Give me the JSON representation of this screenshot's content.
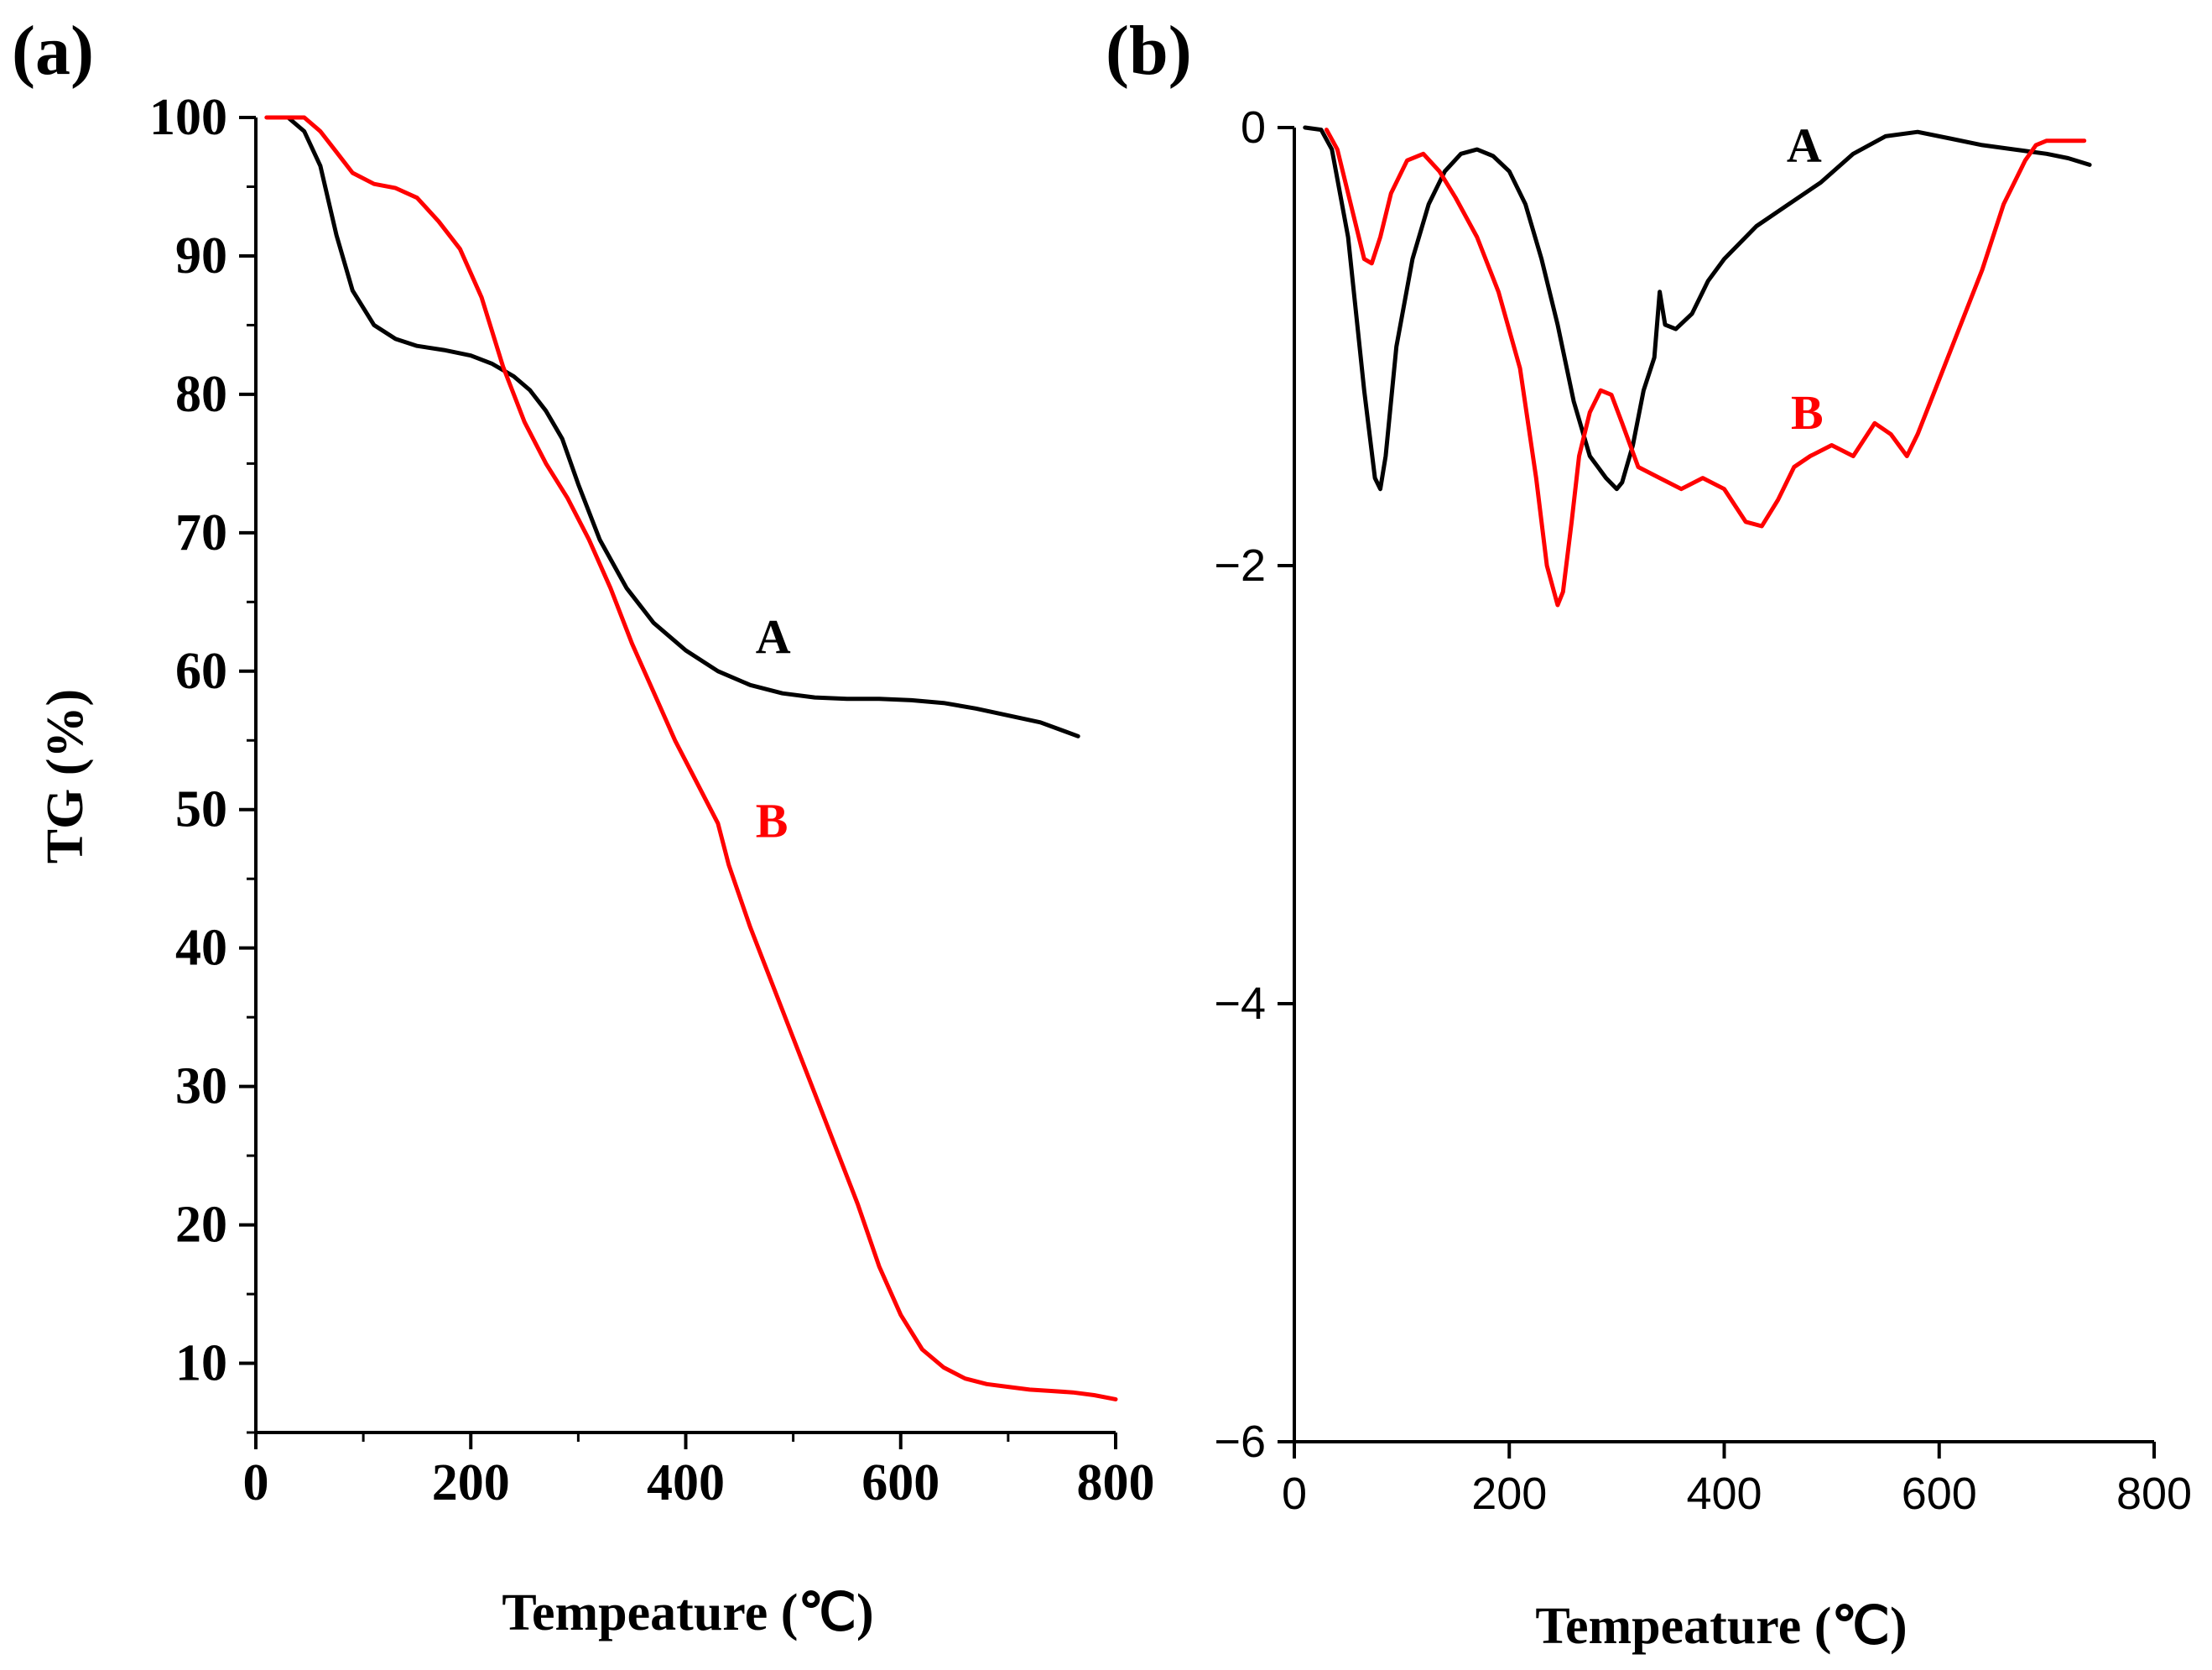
{
  "chart_data": [
    {
      "panel": "(a)",
      "type": "line",
      "xlabel": "Tempeature (℃)",
      "ylabel": "TG (%)",
      "xlim": [
        0,
        800
      ],
      "ylim": [
        5,
        100
      ],
      "xticks": [
        0,
        200,
        400,
        600,
        800
      ],
      "yticks": [
        10,
        20,
        30,
        40,
        50,
        60,
        70,
        80,
        90,
        100
      ],
      "grid": false,
      "series": [
        {
          "name": "A",
          "color": "#000000",
          "x": [
            30,
            45,
            60,
            75,
            90,
            110,
            130,
            150,
            175,
            200,
            220,
            240,
            255,
            270,
            285,
            300,
            320,
            345,
            370,
            400,
            430,
            460,
            490,
            520,
            550,
            580,
            610,
            640,
            670,
            700,
            730,
            765
          ],
          "y": [
            100,
            99,
            96.5,
            91.5,
            87.5,
            85,
            84,
            83.5,
            83.2,
            82.8,
            82.2,
            81.3,
            80.3,
            78.8,
            76.8,
            73.5,
            69.5,
            66,
            63.5,
            61.5,
            60,
            59,
            58.4,
            58.1,
            58,
            58,
            57.9,
            57.7,
            57.3,
            56.8,
            56.3,
            55.3
          ]
        },
        {
          "name": "B",
          "color": "#ff0000",
          "x": [
            10,
            30,
            45,
            60,
            75,
            90,
            110,
            130,
            150,
            170,
            190,
            210,
            230,
            250,
            270,
            290,
            310,
            330,
            350,
            370,
            390,
            410,
            430,
            440,
            460,
            480,
            500,
            520,
            540,
            560,
            580,
            600,
            620,
            640,
            660,
            680,
            700,
            720,
            740,
            760,
            780,
            800
          ],
          "y": [
            100,
            100,
            100,
            99,
            97.5,
            96,
            95.2,
            94.9,
            94.2,
            92.5,
            90.5,
            87,
            82,
            78,
            75,
            72.5,
            69.5,
            66,
            62,
            58.5,
            55,
            52,
            49,
            46,
            41.5,
            37.5,
            33.5,
            29.5,
            25.5,
            21.5,
            17,
            13.5,
            11,
            9.7,
            8.9,
            8.5,
            8.3,
            8.1,
            8,
            7.9,
            7.7,
            7.4
          ]
        }
      ],
      "annotations": [
        {
          "text": "A",
          "x": 465,
          "y": 62.5,
          "color": "#000000"
        },
        {
          "text": "B",
          "x": 465,
          "y": 49.2,
          "color": "#ff0000"
        }
      ]
    },
    {
      "panel": "(b)",
      "type": "line",
      "xlabel": "Tempeature (℃)",
      "ylabel": "",
      "xlim": [
        0,
        800
      ],
      "ylim": [
        -6,
        0
      ],
      "xticks": [
        0,
        200,
        400,
        600,
        800
      ],
      "yticks": [
        0,
        -2,
        -4,
        -6
      ],
      "ytick_labels": [
        "0",
        "−2",
        "−4",
        "−6"
      ],
      "grid": false,
      "series": [
        {
          "name": "A",
          "color": "#000000",
          "x": [
            10,
            25,
            35,
            50,
            65,
            75,
            80,
            85,
            95,
            110,
            125,
            140,
            155,
            170,
            185,
            200,
            215,
            230,
            245,
            260,
            275,
            290,
            300,
            305,
            315,
            325,
            335,
            340,
            345,
            355,
            370,
            385,
            400,
            430,
            460,
            490,
            520,
            550,
            580,
            610,
            640,
            670,
            700,
            720,
            740
          ],
          "y": [
            0,
            -0.01,
            -0.1,
            -0.5,
            -1.2,
            -1.6,
            -1.65,
            -1.5,
            -1.0,
            -0.6,
            -0.35,
            -0.2,
            -0.12,
            -0.1,
            -0.13,
            -0.2,
            -0.35,
            -0.6,
            -0.9,
            -1.25,
            -1.5,
            -1.6,
            -1.65,
            -1.62,
            -1.45,
            -1.2,
            -1.05,
            -0.75,
            -0.9,
            -0.92,
            -0.85,
            -0.7,
            -0.6,
            -0.45,
            -0.35,
            -0.25,
            -0.12,
            -0.04,
            -0.02,
            -0.05,
            -0.08,
            -0.1,
            -0.12,
            -0.14,
            -0.17
          ]
        },
        {
          "name": "B",
          "color": "#ff0000",
          "x": [
            30,
            40,
            55,
            65,
            72,
            80,
            90,
            105,
            120,
            135,
            150,
            170,
            190,
            210,
            225,
            235,
            245,
            250,
            258,
            265,
            275,
            285,
            295,
            305,
            320,
            340,
            360,
            380,
            400,
            420,
            435,
            450,
            465,
            480,
            500,
            520,
            540,
            555,
            570,
            580,
            600,
            620,
            640,
            660,
            680,
            690,
            700,
            715,
            735
          ],
          "y": [
            -0.01,
            -0.1,
            -0.4,
            -0.6,
            -0.62,
            -0.5,
            -0.3,
            -0.15,
            -0.12,
            -0.2,
            -0.32,
            -0.5,
            -0.75,
            -1.1,
            -1.6,
            -2.0,
            -2.18,
            -2.12,
            -1.8,
            -1.5,
            -1.3,
            -1.2,
            -1.22,
            -1.35,
            -1.55,
            -1.6,
            -1.65,
            -1.6,
            -1.65,
            -1.8,
            -1.82,
            -1.7,
            -1.55,
            -1.5,
            -1.45,
            -1.5,
            -1.35,
            -1.4,
            -1.5,
            -1.4,
            -1.15,
            -0.9,
            -0.65,
            -0.35,
            -0.15,
            -0.08,
            -0.06,
            -0.06,
            -0.06
          ]
        }
      ],
      "annotations": [
        {
          "text": "A",
          "x": 458,
          "y": -0.08,
          "color": "#000000"
        },
        {
          "text": "B",
          "x": 462,
          "y": -1.3,
          "color": "#ff0000"
        }
      ]
    }
  ]
}
